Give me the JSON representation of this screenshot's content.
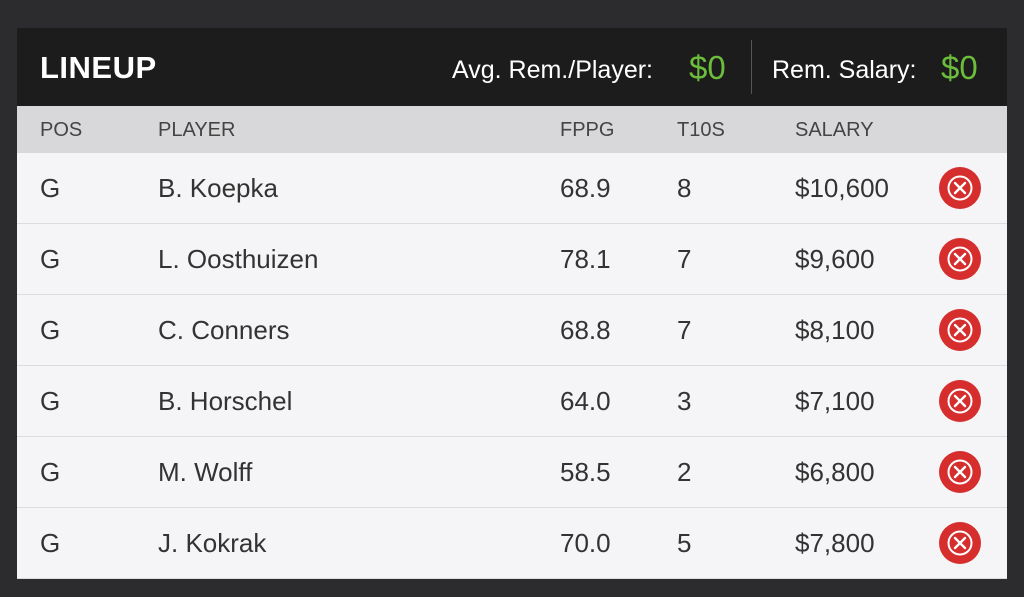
{
  "header": {
    "title": "LINEUP",
    "avg_label": "Avg. Rem./Player:",
    "avg_value": "$0",
    "rem_label": "Rem. Salary:",
    "rem_value": "$0"
  },
  "table": {
    "columns": [
      "POS",
      "PLAYER",
      "FPPG",
      "T10S",
      "SALARY"
    ],
    "rows": [
      [
        "G",
        "B. Koepka",
        "68.9",
        "8",
        "$10,600"
      ],
      [
        "G",
        "L. Oosthuizen",
        "78.1",
        "7",
        "$9,600"
      ],
      [
        "G",
        "C. Conners",
        "68.8",
        "7",
        "$8,100"
      ],
      [
        "G",
        "B. Horschel",
        "64.0",
        "3",
        "$7,100"
      ],
      [
        "G",
        "M. Wolff",
        "58.5",
        "2",
        "$6,800"
      ],
      [
        "G",
        "J. Kokrak",
        "70.0",
        "5",
        "$7,800"
      ]
    ]
  }
}
